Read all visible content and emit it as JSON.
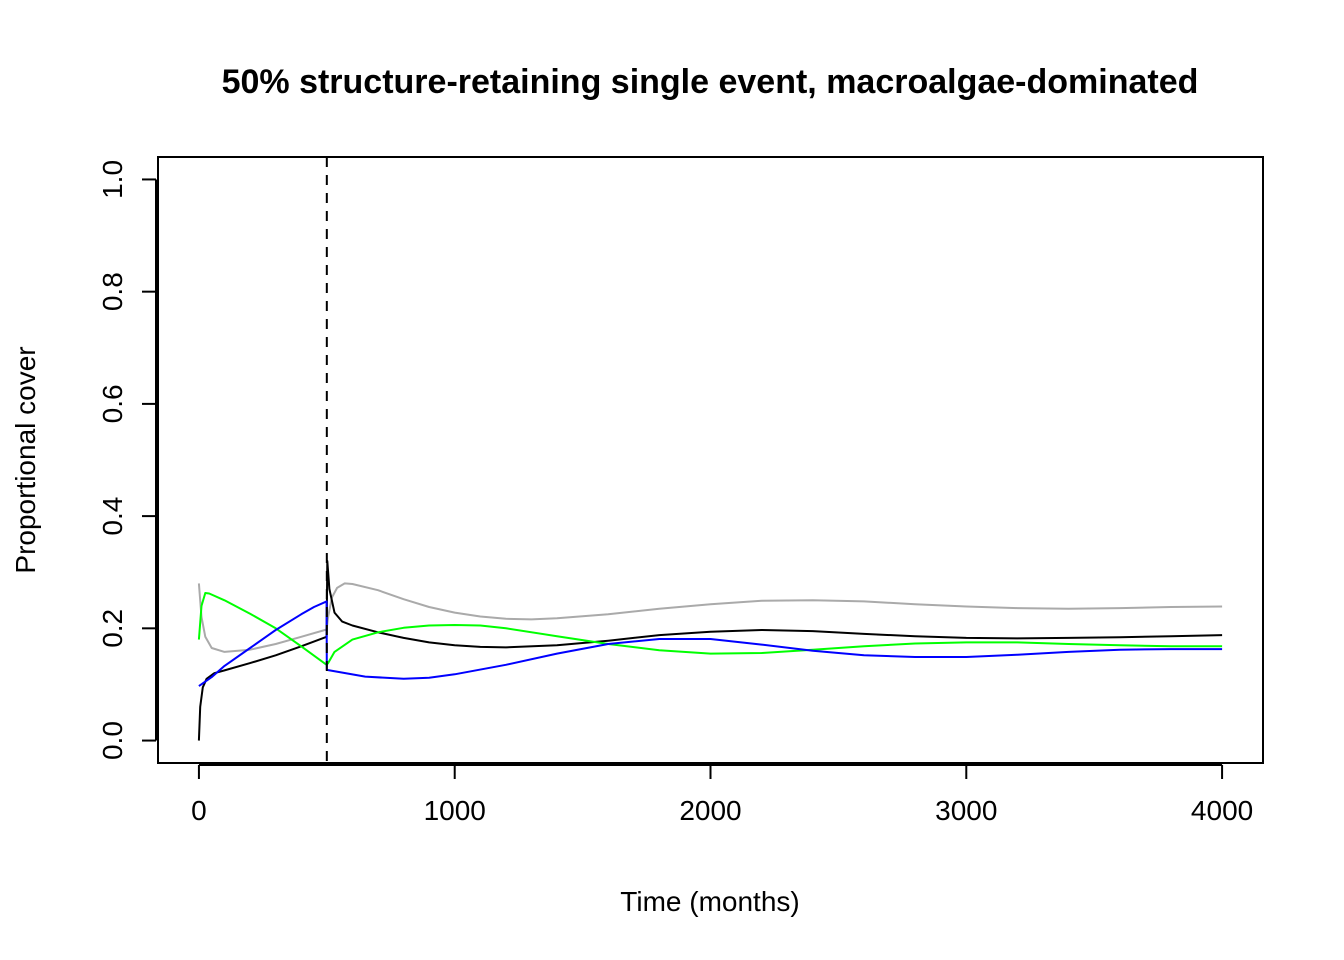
{
  "chart_data": {
    "type": "line",
    "title": "50% structure-retaining single event, macroalgae-dominated",
    "xlabel": "Time (months)",
    "ylabel": "Proportional cover",
    "xlim": [
      -160,
      4160
    ],
    "ylim": [
      -0.04,
      1.04
    ],
    "xticks": [
      0,
      1000,
      2000,
      3000,
      4000
    ],
    "xtick_labels": [
      "0",
      "1000",
      "2000",
      "3000",
      "4000"
    ],
    "yticks": [
      0.0,
      0.2,
      0.4,
      0.6,
      0.8,
      1.0
    ],
    "ytick_labels": [
      "0.0",
      "0.2",
      "0.4",
      "0.6",
      "0.8",
      "1.0"
    ],
    "grid": false,
    "legend": "none",
    "event_line": {
      "x": 500,
      "style": "dashed",
      "color": "#000000"
    },
    "series": [
      {
        "color": "#aaaaaa",
        "points": [
          [
            0,
            0.28
          ],
          [
            10,
            0.22
          ],
          [
            25,
            0.185
          ],
          [
            50,
            0.165
          ],
          [
            100,
            0.158
          ],
          [
            200,
            0.162
          ],
          [
            300,
            0.172
          ],
          [
            400,
            0.185
          ],
          [
            499,
            0.198
          ],
          [
            505,
            0.22
          ],
          [
            520,
            0.255
          ],
          [
            540,
            0.272
          ],
          [
            570,
            0.28
          ],
          [
            600,
            0.279
          ],
          [
            700,
            0.268
          ],
          [
            800,
            0.252
          ],
          [
            900,
            0.238
          ],
          [
            1000,
            0.228
          ],
          [
            1100,
            0.221
          ],
          [
            1200,
            0.217
          ],
          [
            1300,
            0.216
          ],
          [
            1400,
            0.218
          ],
          [
            1600,
            0.225
          ],
          [
            1800,
            0.235
          ],
          [
            2000,
            0.243
          ],
          [
            2200,
            0.249
          ],
          [
            2400,
            0.25
          ],
          [
            2600,
            0.248
          ],
          [
            2800,
            0.243
          ],
          [
            3000,
            0.239
          ],
          [
            3200,
            0.236
          ],
          [
            3400,
            0.235
          ],
          [
            3600,
            0.236
          ],
          [
            3800,
            0.238
          ],
          [
            4000,
            0.239
          ]
        ]
      },
      {
        "color": "#000000",
        "points": [
          [
            0,
            0.0
          ],
          [
            5,
            0.06
          ],
          [
            15,
            0.095
          ],
          [
            30,
            0.11
          ],
          [
            60,
            0.12
          ],
          [
            100,
            0.125
          ],
          [
            200,
            0.138
          ],
          [
            300,
            0.152
          ],
          [
            400,
            0.168
          ],
          [
            499,
            0.185
          ],
          [
            502,
            0.32
          ],
          [
            510,
            0.27
          ],
          [
            530,
            0.228
          ],
          [
            560,
            0.212
          ],
          [
            600,
            0.205
          ],
          [
            700,
            0.193
          ],
          [
            800,
            0.183
          ],
          [
            900,
            0.175
          ],
          [
            1000,
            0.17
          ],
          [
            1100,
            0.167
          ],
          [
            1200,
            0.166
          ],
          [
            1400,
            0.17
          ],
          [
            1600,
            0.178
          ],
          [
            1800,
            0.188
          ],
          [
            2000,
            0.194
          ],
          [
            2200,
            0.197
          ],
          [
            2400,
            0.195
          ],
          [
            2600,
            0.19
          ],
          [
            2800,
            0.186
          ],
          [
            3000,
            0.183
          ],
          [
            3200,
            0.182
          ],
          [
            3400,
            0.183
          ],
          [
            3600,
            0.184
          ],
          [
            3800,
            0.186
          ],
          [
            4000,
            0.188
          ]
        ]
      },
      {
        "color": "#00ff00",
        "points": [
          [
            0,
            0.18
          ],
          [
            10,
            0.24
          ],
          [
            25,
            0.263
          ],
          [
            40,
            0.262
          ],
          [
            100,
            0.25
          ],
          [
            200,
            0.226
          ],
          [
            300,
            0.2
          ],
          [
            400,
            0.168
          ],
          [
            499,
            0.135
          ],
          [
            505,
            0.138
          ],
          [
            530,
            0.158
          ],
          [
            600,
            0.18
          ],
          [
            700,
            0.193
          ],
          [
            800,
            0.201
          ],
          [
            900,
            0.205
          ],
          [
            1000,
            0.206
          ],
          [
            1100,
            0.205
          ],
          [
            1200,
            0.2
          ],
          [
            1400,
            0.186
          ],
          [
            1600,
            0.172
          ],
          [
            1800,
            0.161
          ],
          [
            2000,
            0.155
          ],
          [
            2200,
            0.156
          ],
          [
            2400,
            0.162
          ],
          [
            2600,
            0.168
          ],
          [
            2800,
            0.173
          ],
          [
            3000,
            0.175
          ],
          [
            3200,
            0.175
          ],
          [
            3400,
            0.172
          ],
          [
            3600,
            0.17
          ],
          [
            3800,
            0.168
          ],
          [
            4000,
            0.168
          ]
        ]
      },
      {
        "color": "#0000ff",
        "points": [
          [
            0,
            0.097
          ],
          [
            50,
            0.113
          ],
          [
            100,
            0.133
          ],
          [
            200,
            0.165
          ],
          [
            300,
            0.197
          ],
          [
            400,
            0.225
          ],
          [
            450,
            0.238
          ],
          [
            499,
            0.248
          ],
          [
            500,
            0.126
          ],
          [
            550,
            0.122
          ],
          [
            650,
            0.114
          ],
          [
            800,
            0.11
          ],
          [
            900,
            0.112
          ],
          [
            1000,
            0.118
          ],
          [
            1200,
            0.135
          ],
          [
            1400,
            0.155
          ],
          [
            1600,
            0.172
          ],
          [
            1800,
            0.181
          ],
          [
            2000,
            0.181
          ],
          [
            2200,
            0.171
          ],
          [
            2400,
            0.16
          ],
          [
            2600,
            0.152
          ],
          [
            2800,
            0.149
          ],
          [
            3000,
            0.149
          ],
          [
            3200,
            0.153
          ],
          [
            3400,
            0.158
          ],
          [
            3600,
            0.162
          ],
          [
            3800,
            0.163
          ],
          [
            4000,
            0.163
          ]
        ]
      }
    ]
  }
}
